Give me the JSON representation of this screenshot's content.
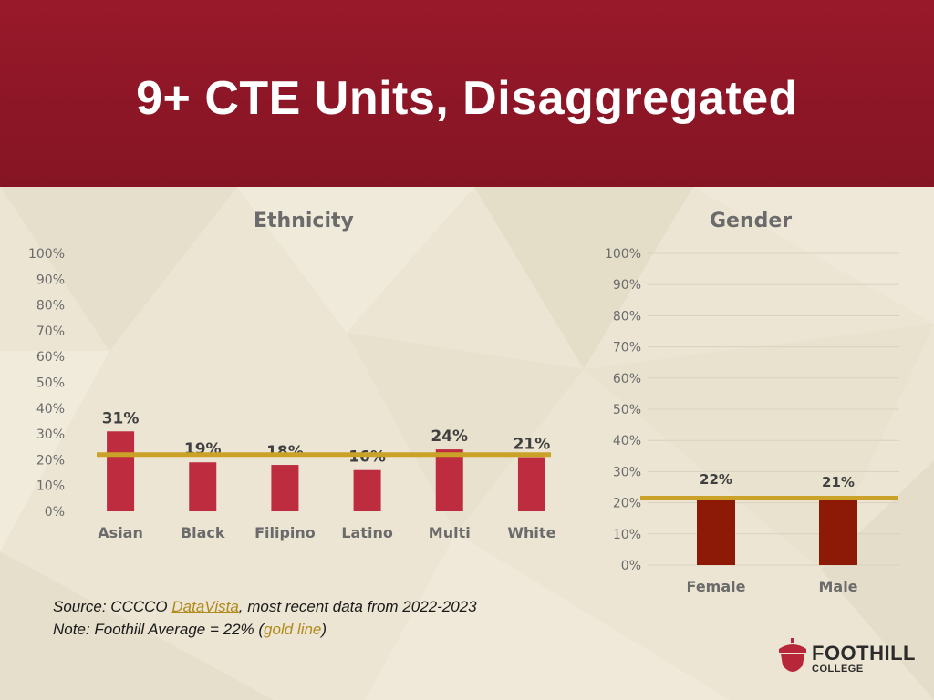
{
  "slide": {
    "title": "9+ CTE Units, Disaggregated"
  },
  "colors": {
    "header": "#8c1626",
    "ethnicity_bar": "#be2c3f",
    "gender_bar": "#8c1a06",
    "average_line": "#c9a227"
  },
  "chart_data": [
    {
      "type": "bar",
      "title": "Ethnicity",
      "categories": [
        "Asian",
        "Black",
        "Filipino",
        "Latino",
        "Multi",
        "White"
      ],
      "values": [
        31,
        19,
        18,
        16,
        24,
        21
      ],
      "value_labels": [
        "31%",
        "19%",
        "18%",
        "16%",
        "24%",
        "21%"
      ],
      "ylim": [
        0,
        100
      ],
      "yticks": [
        "0%",
        "10%",
        "20%",
        "30%",
        "40%",
        "50%",
        "60%",
        "70%",
        "80%",
        "90%",
        "100%"
      ],
      "reference_line": 22,
      "grid": false
    },
    {
      "type": "bar",
      "title": "Gender",
      "categories": [
        "Female",
        "Male"
      ],
      "values": [
        22,
        21
      ],
      "value_labels": [
        "22%",
        "21%"
      ],
      "ylim": [
        0,
        100
      ],
      "yticks": [
        "0%",
        "10%",
        "20%",
        "30%",
        "40%",
        "50%",
        "60%",
        "70%",
        "80%",
        "90%",
        "100%"
      ],
      "reference_line": 21.5,
      "grid": true
    }
  ],
  "footnote": {
    "source_prefix": "Source: CCCCO ",
    "source_link": "DataVista",
    "source_suffix": ", most recent data from 2022-2023",
    "note_prefix": "Note: Foothill Average = 22% (",
    "note_highlight": "gold line",
    "note_suffix": ")"
  },
  "logo": {
    "name": "FOOTHILL",
    "sub": "COLLEGE"
  }
}
